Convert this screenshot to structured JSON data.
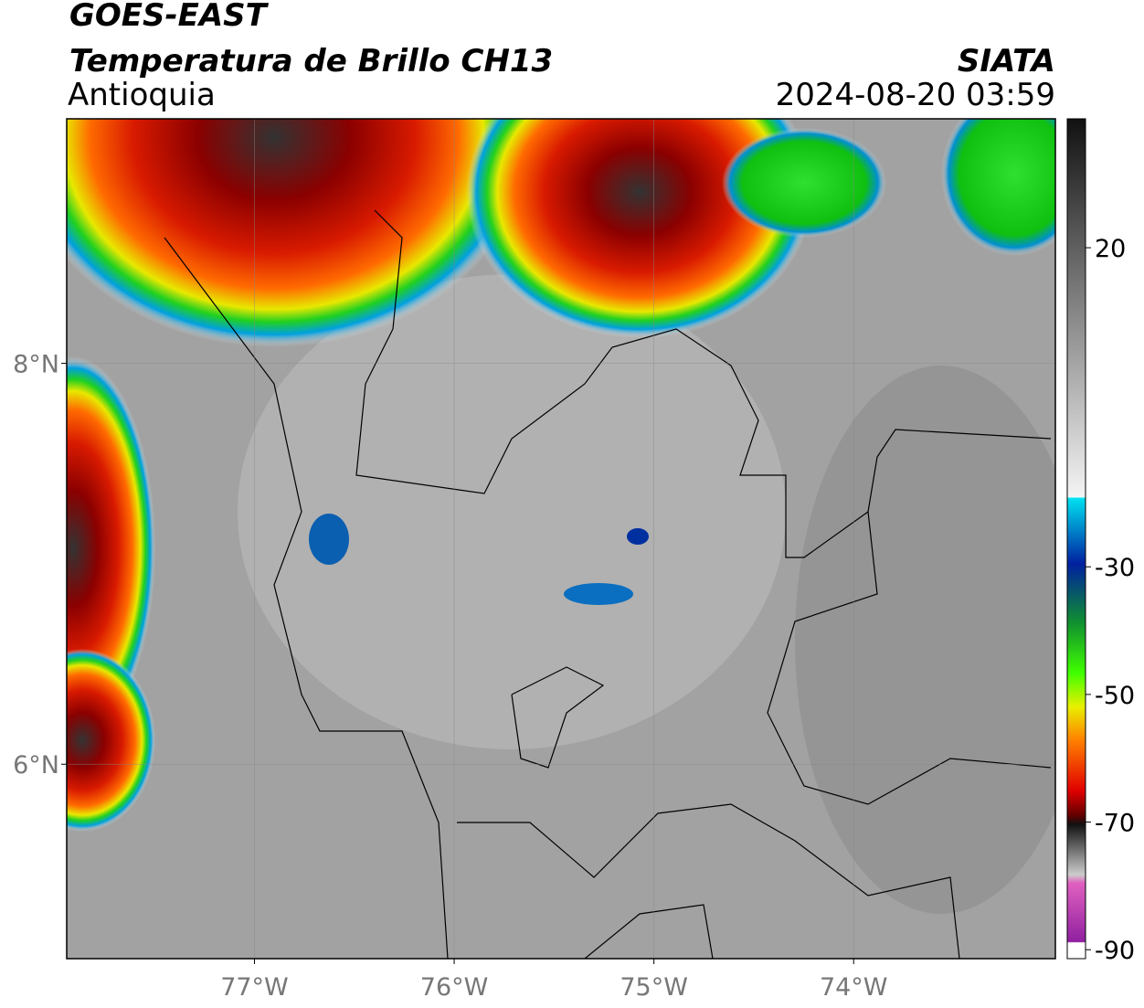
{
  "header": {
    "title": "GOES-EAST",
    "subtitle": "Temperatura de Brillo CH13",
    "region": "Antioquia",
    "source": "SIATA",
    "datetime": "2024-08-20 03:59"
  },
  "map": {
    "xlim": [
      -77.94,
      -72.99
    ],
    "ylim": [
      5.03,
      9.22
    ],
    "xticks": [
      {
        "value": -77,
        "label": "77°W"
      },
      {
        "value": -76,
        "label": "76°W"
      },
      {
        "value": -75,
        "label": "75°W"
      },
      {
        "value": -74,
        "label": "74°W"
      }
    ],
    "yticks": [
      {
        "value": 8,
        "label": "8°N"
      },
      {
        "value": 6,
        "label": "6°N"
      }
    ]
  },
  "colorbar": {
    "lim": [
      -91.4,
      40.2
    ],
    "ticks": [
      20,
      -30,
      -50,
      -70,
      -90
    ]
  }
}
